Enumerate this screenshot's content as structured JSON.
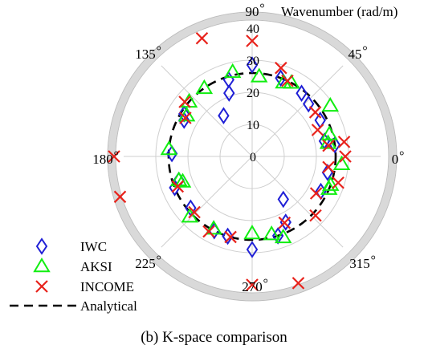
{
  "caption": "(b) K-space comparison",
  "chart_data": {
    "type": "scatter",
    "coordinate_system": "polar",
    "theta_unit": "degrees",
    "r_label": "Wavenumber (rad/m)",
    "r_ticks": [
      0,
      10,
      20,
      30,
      40
    ],
    "r_lim": [
      0,
      40
    ],
    "theta_ticks": [
      0,
      45,
      90,
      135,
      180,
      225,
      270,
      315
    ],
    "theta_tick_labels": [
      "0",
      "45",
      "90",
      "135",
      "180",
      "225",
      "270",
      "315"
    ],
    "grid": true,
    "legend_placement": "bottom-left",
    "series": [
      {
        "name": "IWC",
        "marker": "diamond",
        "color": "#1f1fd6",
        "points": [
          {
            "theta": 90,
            "r": 28.5
          },
          {
            "theta": 70,
            "r": 26
          },
          {
            "theta": 107,
            "r": 25
          },
          {
            "theta": 110,
            "r": 21
          },
          {
            "theta": 125,
            "r": 15.5
          },
          {
            "theta": 52,
            "r": 25
          },
          {
            "theta": 43,
            "r": 24
          },
          {
            "theta": 28,
            "r": 24
          },
          {
            "theta": 12,
            "r": 23
          },
          {
            "theta": 148,
            "r": 25
          },
          {
            "theta": 152,
            "r": 24
          },
          {
            "theta": 178,
            "r": 25
          },
          {
            "theta": 198,
            "r": 24
          },
          {
            "theta": 202,
            "r": 26
          },
          {
            "theta": 220,
            "r": 25
          },
          {
            "theta": 243,
            "r": 26
          },
          {
            "theta": 253,
            "r": 26
          },
          {
            "theta": 270,
            "r": 29
          },
          {
            "theta": 288,
            "r": 26
          },
          {
            "theta": 297,
            "r": 23
          },
          {
            "theta": 306,
            "r": 16.5
          },
          {
            "theta": 333,
            "r": 24
          },
          {
            "theta": 348,
            "r": 24
          },
          {
            "theta": 8,
            "r": 26
          }
        ]
      },
      {
        "name": "AKSI",
        "marker": "triangle",
        "color": "#11ee11",
        "points": [
          {
            "theta": 85,
            "r": 25
          },
          {
            "theta": 103,
            "r": 27
          },
          {
            "theta": 125,
            "r": 26
          },
          {
            "theta": 139,
            "r": 26
          },
          {
            "theta": 62,
            "r": 26
          },
          {
            "theta": 67,
            "r": 25
          },
          {
            "theta": 33,
            "r": 29
          },
          {
            "theta": 16,
            "r": 25
          },
          {
            "theta": 10,
            "r": 24
          },
          {
            "theta": 148,
            "r": 24
          },
          {
            "theta": 175,
            "r": 26
          },
          {
            "theta": 198,
            "r": 24
          },
          {
            "theta": 200,
            "r": 23
          },
          {
            "theta": 224,
            "r": 27
          },
          {
            "theta": 242,
            "r": 25.5
          },
          {
            "theta": 270,
            "r": 24
          },
          {
            "theta": 284,
            "r": 25
          },
          {
            "theta": 291,
            "r": 27
          },
          {
            "theta": 337,
            "r": 26
          },
          {
            "theta": 340,
            "r": 26
          },
          {
            "theta": 355,
            "r": 28
          }
        ]
      },
      {
        "name": "INCOME",
        "marker": "x",
        "color": "#e8221b",
        "points": [
          {
            "theta": 90,
            "r": 36
          },
          {
            "theta": 113,
            "r": 40
          },
          {
            "theta": 72,
            "r": 29
          },
          {
            "theta": 65,
            "r": 26
          },
          {
            "theta": 35,
            "r": 24
          },
          {
            "theta": 22,
            "r": 22
          },
          {
            "theta": 9,
            "r": 29
          },
          {
            "theta": 141,
            "r": 27
          },
          {
            "theta": 150,
            "r": 24
          },
          {
            "theta": 180,
            "r": 43
          },
          {
            "theta": 197,
            "r": 43
          },
          {
            "theta": 202,
            "r": 25
          },
          {
            "theta": 224,
            "r": 25
          },
          {
            "theta": 240,
            "r": 27
          },
          {
            "theta": 255,
            "r": 26
          },
          {
            "theta": 270,
            "r": 40
          },
          {
            "theta": 290,
            "r": 42
          },
          {
            "theta": 296,
            "r": 23
          },
          {
            "theta": 317,
            "r": 27
          },
          {
            "theta": 330,
            "r": 23
          },
          {
            "theta": 343,
            "r": 28
          },
          {
            "theta": 352,
            "r": 24
          },
          {
            "theta": 0,
            "r": 29
          },
          {
            "theta": 8,
            "r": 24
          }
        ]
      },
      {
        "name": "Analytical",
        "marker": "line-dashed",
        "color": "#000000",
        "points": [
          {
            "theta": 0,
            "r": 26
          },
          {
            "theta": 90,
            "r": 26
          },
          {
            "theta": 180,
            "r": 26
          },
          {
            "theta": 270,
            "r": 26
          }
        ]
      }
    ]
  }
}
